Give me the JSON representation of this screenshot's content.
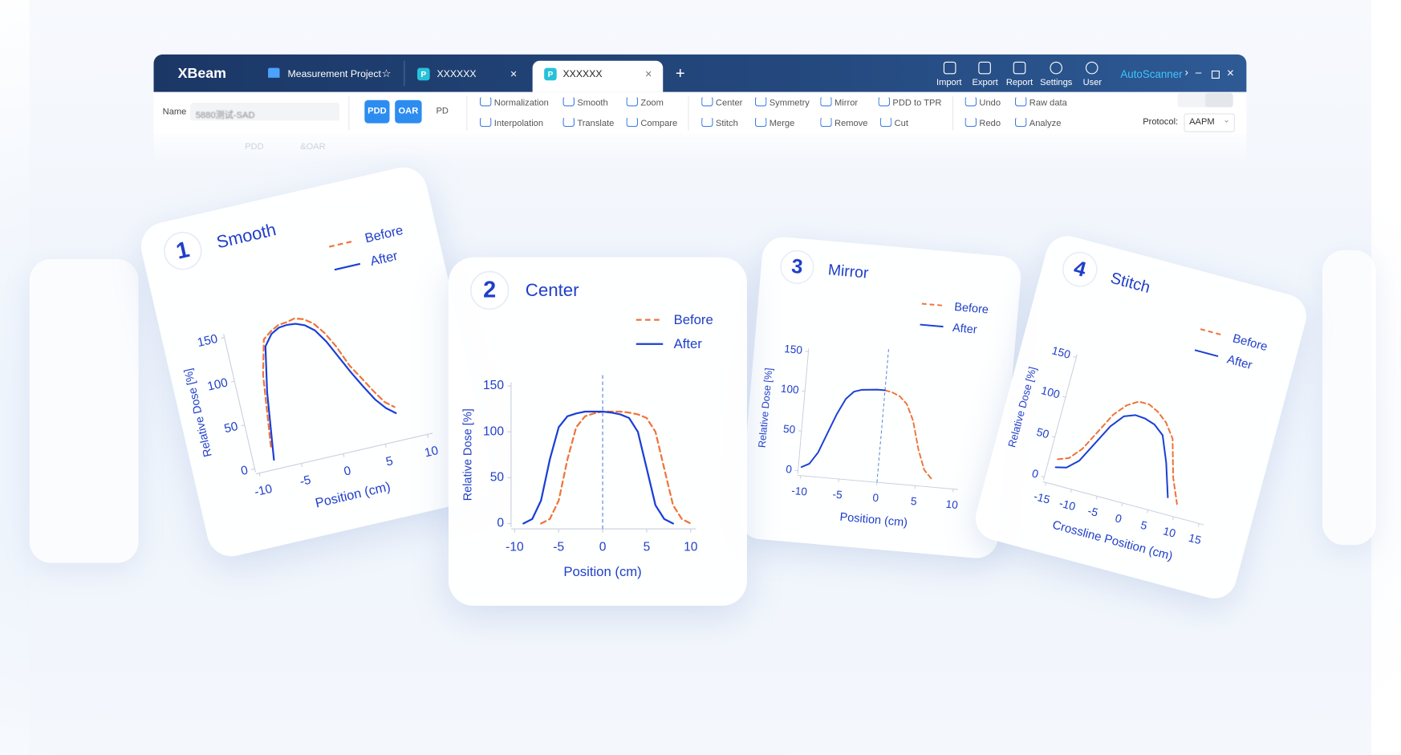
{
  "app": {
    "name": "XBeam",
    "tabs": [
      "Measurement Project",
      "XXXXXX",
      "XXXXXX"
    ],
    "actions": [
      "Import",
      "Export",
      "Report",
      "Settings",
      "User"
    ],
    "scanner": "AutoScanner",
    "name_label": "Name",
    "name_value": "5880测试-SAD",
    "modes": [
      "PDD",
      "OAR",
      "PD"
    ],
    "tools": [
      "Normalization",
      "Interpolation",
      "Smooth",
      "Translate",
      "Zoom",
      "Compare",
      "Center",
      "Stitch",
      "Symmetry",
      "Merge",
      "Mirror",
      "Remove",
      "PDD to TPR",
      "Cut",
      "Undo",
      "Redo",
      "Raw data",
      "Analyze"
    ],
    "protocol_label": "Protocol:",
    "protocol_value": "AAPM",
    "ghost": [
      "PDD",
      "&OAR"
    ]
  },
  "chart_data": [
    {
      "type": "line",
      "badge": 1,
      "title": "Smooth",
      "xlabel": "Position (cm)",
      "ylabel": "Relative Dose [%]",
      "x": [
        -10,
        -9,
        -8,
        -7,
        -6,
        -5,
        -4,
        -3,
        -2,
        -1,
        0,
        1,
        2,
        3,
        4,
        5,
        6,
        7,
        8
      ],
      "series": [
        {
          "name": "Before",
          "color": "#f0733a",
          "dashed": true,
          "values": [
            null,
            null,
            20,
            100,
            138,
            145,
            150,
            151,
            153,
            150,
            143,
            130,
            112,
            88,
            72,
            55,
            40,
            32,
            null
          ]
        },
        {
          "name": "After",
          "color": "#1a3fd6",
          "dashed": false,
          "values": [
            null,
            null,
            5,
            80,
            130,
            142,
            147,
            148,
            147,
            143,
            135,
            120,
            100,
            80,
            62,
            45,
            33,
            25,
            null
          ]
        }
      ],
      "xlim": [
        -10,
        10
      ],
      "xticks": [
        -10,
        -5,
        0,
        5,
        10
      ],
      "ylim": [
        0,
        150
      ],
      "yticks": [
        0,
        50,
        100,
        150
      ]
    },
    {
      "type": "line",
      "badge": 2,
      "title": "Center",
      "xlabel": "Position (cm)",
      "ylabel": "Relative Dose [%]",
      "x": [
        -10,
        -9,
        -8,
        -7,
        -6,
        -5,
        -4,
        -3,
        -2,
        -1,
        0,
        1,
        2,
        3,
        4,
        5,
        6,
        7,
        8,
        9,
        10
      ],
      "series": [
        {
          "name": "Before",
          "color": "#f0733a",
          "dashed": true,
          "values": [
            null,
            null,
            null,
            0,
            5,
            25,
            70,
            105,
            117,
            120,
            122,
            122,
            122,
            121,
            119,
            115,
            100,
            60,
            20,
            5,
            0
          ]
        },
        {
          "name": "After",
          "color": "#1a3fd6",
          "dashed": false,
          "values": [
            null,
            0,
            5,
            25,
            70,
            105,
            117,
            120,
            122,
            122,
            122,
            121,
            119,
            115,
            100,
            60,
            20,
            5,
            0,
            null,
            null
          ]
        }
      ],
      "xlim": [
        -10,
        10
      ],
      "xticks": [
        -10,
        -5,
        0,
        5,
        10
      ],
      "ylim": [
        0,
        150
      ],
      "yticks": [
        0,
        50,
        100,
        150
      ],
      "vline": 0
    },
    {
      "type": "line",
      "badge": 3,
      "title": "Mirror",
      "xlabel": "Position (cm)",
      "ylabel": "Relative Dose [%]",
      "x": [
        -10,
        -9,
        -8,
        -7,
        -6,
        -5,
        -4,
        -3,
        -2,
        -1,
        0,
        1,
        2,
        3,
        4,
        5,
        6,
        7
      ],
      "series": [
        {
          "name": "Before",
          "color": "#f0733a",
          "dashed": true,
          "values": [
            null,
            null,
            null,
            null,
            null,
            null,
            null,
            null,
            null,
            null,
            110,
            108,
            104,
            95,
            75,
            40,
            15,
            5
          ]
        },
        {
          "name": "After",
          "color": "#1a3fd6",
          "dashed": false,
          "values": [
            5,
            10,
            25,
            50,
            75,
            95,
            105,
            108,
            109,
            110,
            110,
            null,
            null,
            null,
            null,
            null,
            null,
            null
          ]
        }
      ],
      "xlim": [
        -10,
        10
      ],
      "xticks": [
        -10,
        -5,
        0,
        5,
        10
      ],
      "ylim": [
        0,
        150
      ],
      "yticks": [
        0,
        50,
        100,
        150
      ],
      "vline": 0
    },
    {
      "type": "line",
      "badge": 4,
      "title": "Stitch",
      "xlabel": "Crossline Position (cm)",
      "ylabel": "Relative Dose [%]",
      "x": [
        -14,
        -12,
        -10,
        -8,
        -6,
        -4,
        -2,
        0,
        2,
        4,
        6,
        8,
        10
      ],
      "series": [
        {
          "name": "Before",
          "color": "#f0733a",
          "dashed": true,
          "values": [
            25,
            30,
            45,
            70,
            95,
            110,
            118,
            118,
            112,
            102,
            85,
            40,
            10
          ]
        },
        {
          "name": "After",
          "color": "#1a3fd6",
          "dashed": false,
          "values": [
            15,
            18,
            30,
            55,
            80,
            96,
            101,
            100,
            96,
            86,
            55,
            15,
            null
          ]
        }
      ],
      "xlim": [
        -15,
        15
      ],
      "xticks": [
        -15,
        -10,
        -5,
        0,
        5,
        10,
        15
      ],
      "ylim": [
        0,
        150
      ],
      "yticks": [
        0,
        50,
        100,
        150
      ]
    }
  ]
}
